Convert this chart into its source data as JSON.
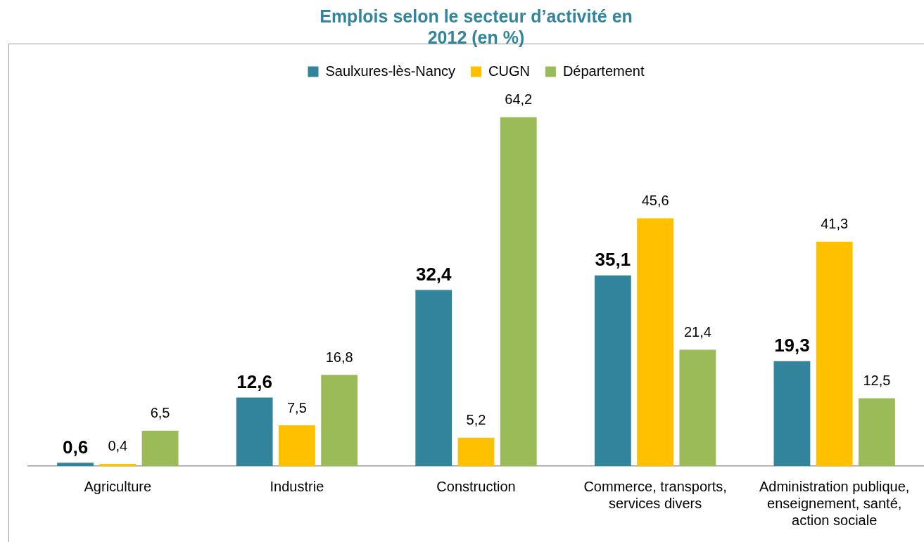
{
  "chart_data": {
    "type": "bar",
    "title": "Emplois selon le secteur d’activité en 2012 (en %)",
    "categories": [
      "Agriculture",
      "Industrie",
      "Construction",
      "Commerce, transports, services divers",
      "Administration publique, enseignement, santé, action sociale"
    ],
    "series": [
      {
        "name": "Saulxures-lès-Nancy",
        "color": "#31849b",
        "values": [
          0.6,
          12.6,
          32.4,
          35.1,
          19.3
        ],
        "value_labels": [
          "0,6",
          "12,6",
          "32,4",
          "35,1",
          "19,3"
        ]
      },
      {
        "name": "CUGN",
        "color": "#ffc000",
        "values": [
          0.4,
          7.5,
          5.2,
          45.6,
          41.3
        ],
        "value_labels": [
          "0,4",
          "7,5",
          "5,2",
          "45,6",
          "41,3"
        ]
      },
      {
        "name": "Département",
        "color": "#9bbb59",
        "values": [
          6.5,
          16.8,
          64.2,
          21.4,
          12.5
        ],
        "value_labels": [
          "6,5",
          "16,8",
          "64,2",
          "21,4",
          "12,5"
        ]
      }
    ],
    "legend": "top",
    "grid": false
  }
}
